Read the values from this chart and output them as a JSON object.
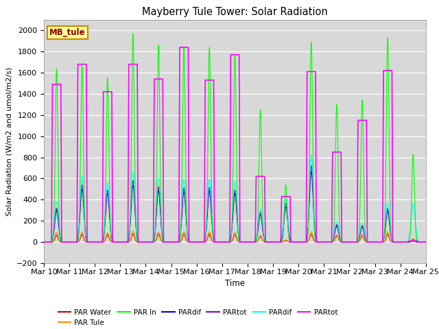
{
  "title": "Mayberry Tule Tower: Solar Radiation",
  "xlabel": "Time",
  "ylabel": "Solar Radiation (W/m2 and umol/m2/s)",
  "ylim": [
    -200,
    2100
  ],
  "x_tick_labels": [
    "Mar 10",
    "Mar 11",
    "Mar 12",
    "Mar 13",
    "Mar 14",
    "Mar 15",
    "Mar 16",
    "Mar 17",
    "Mar 18",
    "Mar 19",
    "Mar 20",
    "Mar 21",
    "Mar 22",
    "Mar 23",
    "Mar 24",
    "Mar 25"
  ],
  "station_label": "MB_tule",
  "bg_color": "#d8d8d8",
  "series_colors": {
    "par_in": "#00ff00",
    "par_tot_m": "#ff00ff",
    "par_tule": "#ff8800",
    "par_water": "#cc0000",
    "par_dif_c": "#00ffff",
    "par_tot_p": "#8800cc",
    "par_dif_b": "#0000cc"
  },
  "day_peaks": [
    {
      "day": 0,
      "par_in": 1640,
      "par_tot_m": 1490,
      "par_tule": 90,
      "par_water": 65,
      "par_dif_c": 380,
      "par_tot_p": 320,
      "par_dif_b": 300
    },
    {
      "day": 1,
      "par_in": 1680,
      "par_tot_m": 1680,
      "par_tule": 95,
      "par_water": 72,
      "par_dif_c": 620,
      "par_tot_p": 540,
      "par_dif_b": 500
    },
    {
      "day": 2,
      "par_in": 1550,
      "par_tot_m": 1420,
      "par_tule": 88,
      "par_water": 68,
      "par_dif_c": 560,
      "par_tot_p": 490,
      "par_dif_b": 460
    },
    {
      "day": 3,
      "par_in": 1970,
      "par_tot_m": 1680,
      "par_tule": 105,
      "par_water": 78,
      "par_dif_c": 660,
      "par_tot_p": 580,
      "par_dif_b": 540
    },
    {
      "day": 4,
      "par_in": 1860,
      "par_tot_m": 1540,
      "par_tule": 98,
      "par_water": 74,
      "par_dif_c": 600,
      "par_tot_p": 520,
      "par_dif_b": 490
    },
    {
      "day": 5,
      "par_in": 1840,
      "par_tot_m": 1840,
      "par_tule": 98,
      "par_water": 74,
      "par_dif_c": 590,
      "par_tot_p": 510,
      "par_dif_b": 480
    },
    {
      "day": 6,
      "par_in": 1840,
      "par_tot_m": 1530,
      "par_tule": 98,
      "par_water": 74,
      "par_dif_c": 595,
      "par_tot_p": 515,
      "par_dif_b": 483
    },
    {
      "day": 7,
      "par_in": 1770,
      "par_tot_m": 1770,
      "par_tule": 93,
      "par_water": 70,
      "par_dif_c": 570,
      "par_tot_p": 490,
      "par_dif_b": 460
    },
    {
      "day": 8,
      "par_in": 1250,
      "par_tot_m": 620,
      "par_tule": 63,
      "par_water": 52,
      "par_dif_c": 310,
      "par_tot_p": 280,
      "par_dif_b": 260
    },
    {
      "day": 9,
      "par_in": 540,
      "par_tot_m": 430,
      "par_tule": 22,
      "par_water": 16,
      "par_dif_c": 400,
      "par_tot_p": 365,
      "par_dif_b": 335
    },
    {
      "day": 10,
      "par_in": 1890,
      "par_tot_m": 1610,
      "par_tule": 98,
      "par_water": 73,
      "par_dif_c": 820,
      "par_tot_p": 720,
      "par_dif_b": 670
    },
    {
      "day": 11,
      "par_in": 1300,
      "par_tot_m": 850,
      "par_tule": 67,
      "par_water": 57,
      "par_dif_c": 195,
      "par_tot_p": 165,
      "par_dif_b": 153
    },
    {
      "day": 12,
      "par_in": 1340,
      "par_tot_m": 1150,
      "par_tule": 72,
      "par_water": 60,
      "par_dif_c": 180,
      "par_tot_p": 155,
      "par_dif_b": 143
    },
    {
      "day": 13,
      "par_in": 1930,
      "par_tot_m": 1620,
      "par_tule": 98,
      "par_water": 74,
      "par_dif_c": 365,
      "par_tot_p": 315,
      "par_dif_b": 295
    },
    {
      "day": 14,
      "par_in": 830,
      "par_tot_m": 10,
      "par_tule": 33,
      "par_water": 22,
      "par_dif_c": 360,
      "par_tot_p": 10,
      "par_dif_b": 10
    }
  ]
}
